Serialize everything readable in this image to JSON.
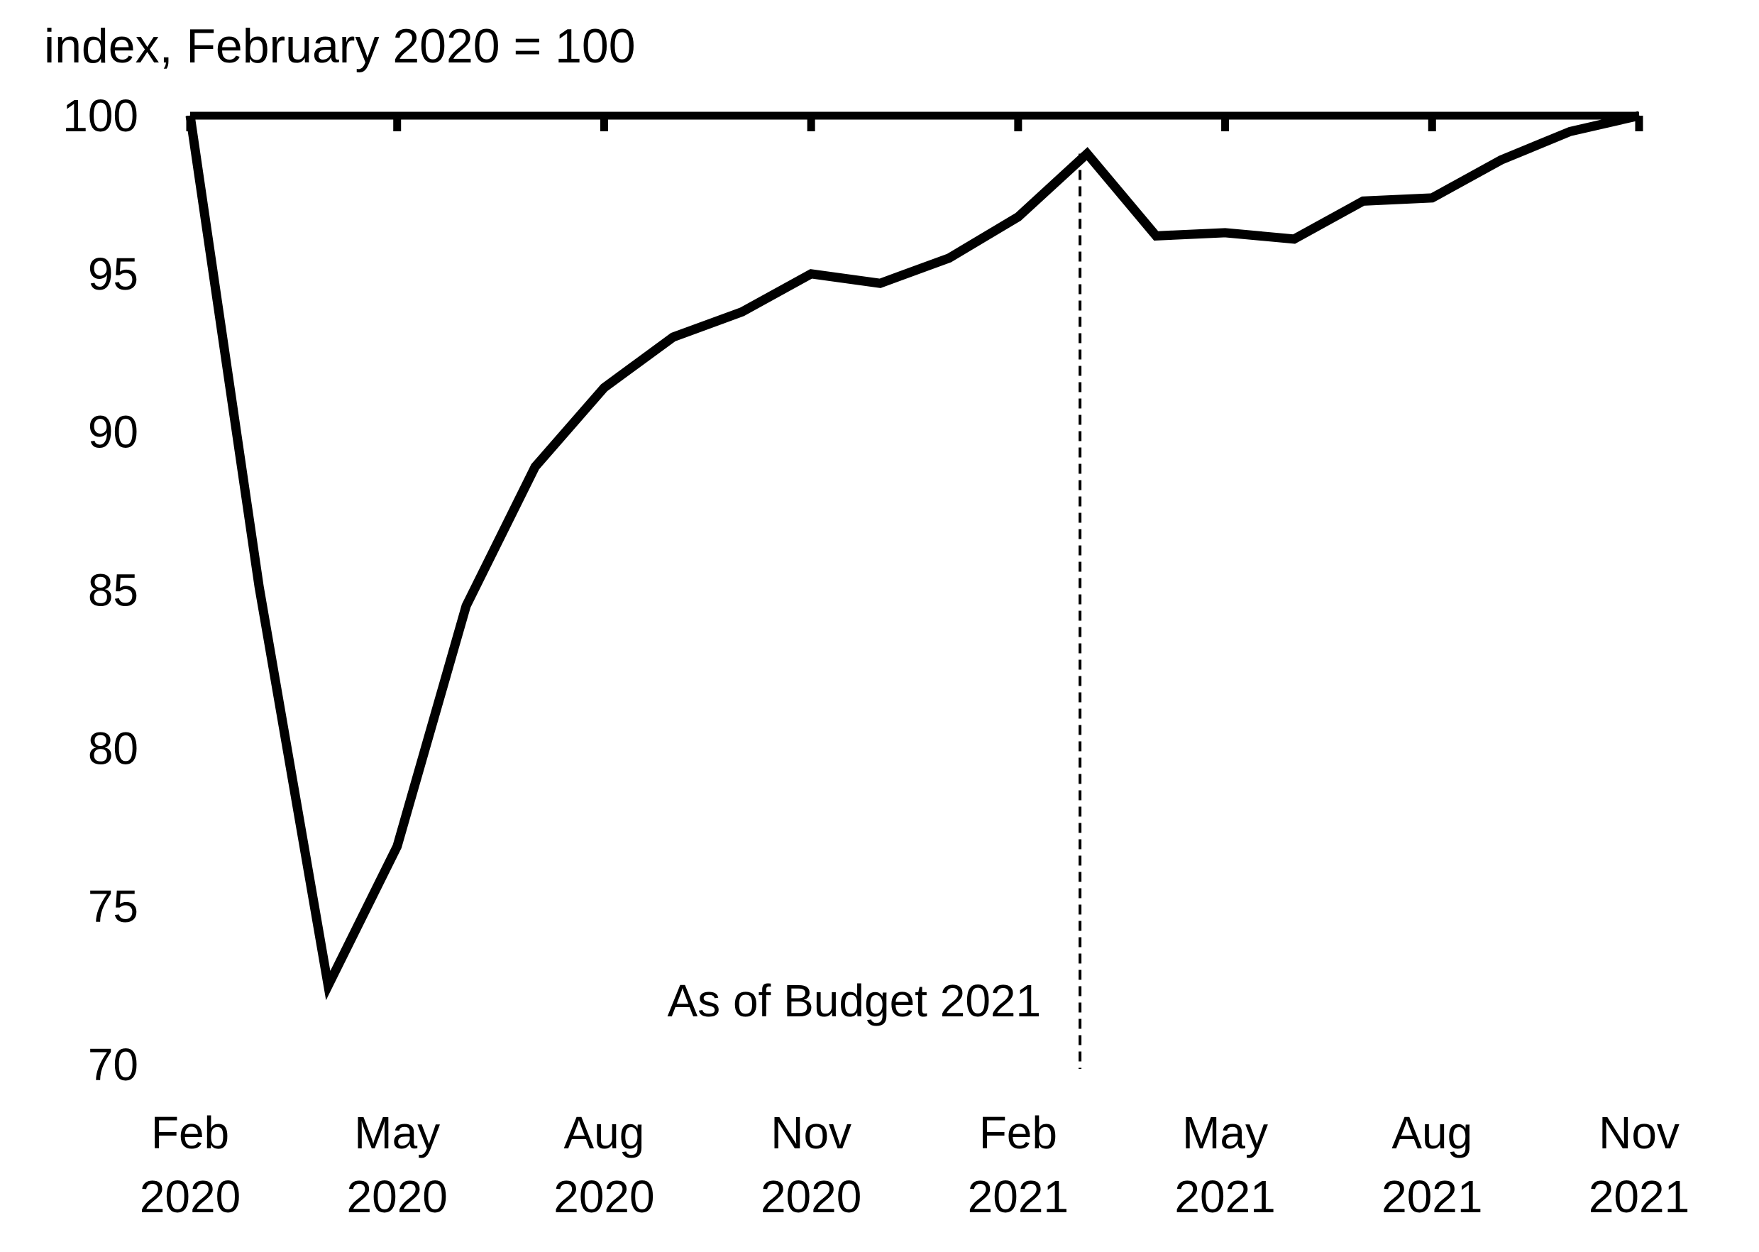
{
  "chart_data": {
    "type": "line",
    "ylabel": "index, February 2020 = 100",
    "ylim": [
      70,
      100
    ],
    "yticks": [
      "100",
      "95",
      "90",
      "85",
      "80",
      "75",
      "70"
    ],
    "xlabels": [
      {
        "month": "Feb",
        "year": "2020"
      },
      {
        "month": "May",
        "year": "2020"
      },
      {
        "month": "Aug",
        "year": "2020"
      },
      {
        "month": "Nov",
        "year": "2020"
      },
      {
        "month": "Feb",
        "year": "2021"
      },
      {
        "month": "May",
        "year": "2021"
      },
      {
        "month": "Aug",
        "year": "2021"
      },
      {
        "month": "Nov",
        "year": "2021"
      }
    ],
    "x": [
      "2020-02",
      "2020-03",
      "2020-04",
      "2020-05",
      "2020-06",
      "2020-07",
      "2020-08",
      "2020-09",
      "2020-10",
      "2020-11",
      "2020-12",
      "2021-01",
      "2021-02",
      "2021-03",
      "2021-04",
      "2021-05",
      "2021-06",
      "2021-07",
      "2021-08",
      "2021-09",
      "2021-10",
      "2021-11"
    ],
    "series": [
      {
        "values": [
          100,
          85.1,
          72.5,
          76.9,
          84.5,
          88.9,
          91.4,
          93.0,
          93.8,
          95.0,
          94.7,
          95.5,
          96.8,
          98.8,
          96.2,
          96.3,
          96.1,
          97.3,
          97.4,
          98.6,
          99.5,
          100.0
        ],
        "color": "#000000"
      }
    ],
    "reference_line": {
      "value": 100
    },
    "annotation": {
      "text": "As of Budget 2021",
      "x": "2021-03",
      "line_style": "dashed"
    },
    "grid": false,
    "legend": "none"
  }
}
